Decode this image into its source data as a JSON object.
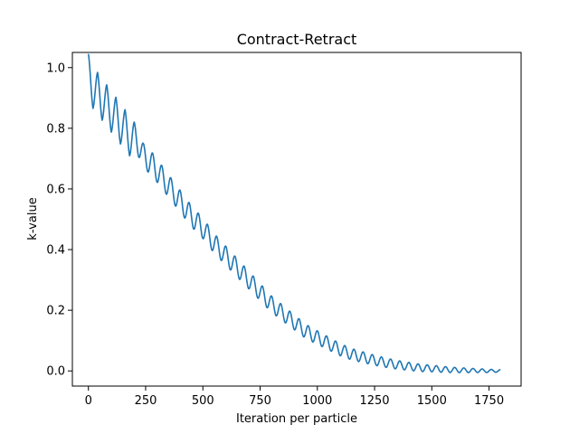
{
  "chart_data": {
    "type": "line",
    "title": "Contract-Retract",
    "xlabel": "Iteration per particle",
    "ylabel": "k-value",
    "xlim": [
      -70,
      1890
    ],
    "ylim": [
      -0.05,
      1.05
    ],
    "xticks": [
      0,
      250,
      500,
      750,
      1000,
      1250,
      1500,
      1750
    ],
    "yticks": [
      0.0,
      0.2,
      0.4,
      0.6,
      0.8,
      1.0
    ],
    "xtick_labels": [
      "0",
      "250",
      "500",
      "750",
      "1000",
      "1250",
      "1500",
      "1750"
    ],
    "ytick_labels": [
      "0.0",
      "0.2",
      "0.4",
      "0.6",
      "0.8",
      "1.0"
    ],
    "grid": false,
    "series": [
      {
        "color": "#1f77b4",
        "x": [
          0,
          20,
          40,
          60,
          80,
          100,
          120,
          140,
          160,
          180,
          200,
          240,
          280,
          320,
          360,
          400,
          450,
          500,
          550,
          600,
          650,
          700,
          750,
          800,
          850,
          900,
          950,
          1000,
          1050,
          1100,
          1150,
          1200,
          1250,
          1300,
          1350,
          1400,
          1450,
          1500,
          1550,
          1600,
          1650,
          1700,
          1750,
          1800
        ],
        "values": [
          1.0,
          0.91,
          0.94,
          0.87,
          0.9,
          0.83,
          0.86,
          0.79,
          0.82,
          0.75,
          0.78,
          0.71,
          0.68,
          0.64,
          0.6,
          0.56,
          0.51,
          0.47,
          0.42,
          0.38,
          0.34,
          0.3,
          0.26,
          0.22,
          0.19,
          0.16,
          0.13,
          0.11,
          0.09,
          0.07,
          0.055,
          0.045,
          0.035,
          0.027,
          0.02,
          0.015,
          0.01,
          0.008,
          0.005,
          0.003,
          0.002,
          0.001,
          0.0,
          0.0
        ]
      }
    ],
    "oscillation": {
      "period": 40,
      "amplitude_start": 0.045,
      "amplitude_end": 0.004
    }
  }
}
